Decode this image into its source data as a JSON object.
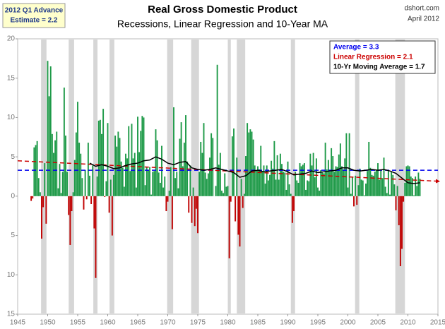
{
  "chart_data": {
    "type": "bar",
    "title": "Real Gross Domestic Product",
    "subtitle": "Recessions, Linear Regression and 10-Year MA",
    "source": "dshort.com",
    "date": "April 2012",
    "note": [
      "2012 Q1 Advance",
      "Estimate = 2.2"
    ],
    "x": [
      1947.25,
      1947.5,
      1947.75,
      1948,
      1948.25,
      1948.5,
      1948.75,
      1949,
      1949.25,
      1949.5,
      1949.75,
      1950,
      1950.25,
      1950.5,
      1950.75,
      1951,
      1951.25,
      1951.5,
      1951.75,
      1952,
      1952.25,
      1952.5,
      1952.75,
      1953,
      1953.25,
      1953.5,
      1953.75,
      1954,
      1954.25,
      1954.5,
      1954.75,
      1955,
      1955.25,
      1955.5,
      1955.75,
      1956,
      1956.25,
      1956.5,
      1956.75,
      1957,
      1957.25,
      1957.5,
      1957.75,
      1958,
      1958.25,
      1958.5,
      1958.75,
      1959,
      1959.25,
      1959.5,
      1959.75,
      1960,
      1960.25,
      1960.5,
      1960.75,
      1961,
      1961.25,
      1961.5,
      1961.75,
      1962,
      1962.25,
      1962.5,
      1962.75,
      1963,
      1963.25,
      1963.5,
      1963.75,
      1964,
      1964.25,
      1964.5,
      1964.75,
      1965,
      1965.25,
      1965.5,
      1965.75,
      1966,
      1966.25,
      1966.5,
      1966.75,
      1967,
      1967.25,
      1967.5,
      1967.75,
      1968,
      1968.25,
      1968.5,
      1968.75,
      1969,
      1969.25,
      1969.5,
      1969.75,
      1970,
      1970.25,
      1970.5,
      1970.75,
      1971,
      1971.25,
      1971.5,
      1971.75,
      1972,
      1972.25,
      1972.5,
      1972.75,
      1973,
      1973.25,
      1973.5,
      1973.75,
      1974,
      1974.25,
      1974.5,
      1974.75,
      1975,
      1975.25,
      1975.5,
      1975.75,
      1976,
      1976.25,
      1976.5,
      1976.75,
      1977,
      1977.25,
      1977.5,
      1977.75,
      1978,
      1978.25,
      1978.5,
      1978.75,
      1979,
      1979.25,
      1979.5,
      1979.75,
      1980,
      1980.25,
      1980.5,
      1980.75,
      1981,
      1981.25,
      1981.5,
      1981.75,
      1982,
      1982.25,
      1982.5,
      1982.75,
      1983,
      1983.25,
      1983.5,
      1983.75,
      1984,
      1984.25,
      1984.5,
      1984.75,
      1985,
      1985.25,
      1985.5,
      1985.75,
      1986,
      1986.25,
      1986.5,
      1986.75,
      1987,
      1987.25,
      1987.5,
      1987.75,
      1988,
      1988.25,
      1988.5,
      1988.75,
      1989,
      1989.25,
      1989.5,
      1989.75,
      1990,
      1990.25,
      1990.5,
      1990.75,
      1991,
      1991.25,
      1991.5,
      1991.75,
      1992,
      1992.25,
      1992.5,
      1992.75,
      1993,
      1993.25,
      1993.5,
      1993.75,
      1994,
      1994.25,
      1994.5,
      1994.75,
      1995,
      1995.25,
      1995.5,
      1995.75,
      1996,
      1996.25,
      1996.5,
      1996.75,
      1997,
      1997.25,
      1997.5,
      1997.75,
      1998,
      1998.25,
      1998.5,
      1998.75,
      1999,
      1999.25,
      1999.5,
      1999.75,
      2000,
      2000.25,
      2000.5,
      2000.75,
      2001,
      2001.25,
      2001.5,
      2001.75,
      2002,
      2002.25,
      2002.5,
      2002.75,
      2003,
      2003.25,
      2003.5,
      2003.75,
      2004,
      2004.25,
      2004.5,
      2004.75,
      2005,
      2005.25,
      2005.5,
      2005.75,
      2006,
      2006.25,
      2006.5,
      2006.75,
      2007,
      2007.25,
      2007.5,
      2007.75,
      2008,
      2008.25,
      2008.5,
      2008.75,
      2009,
      2009.25,
      2009.5,
      2009.75,
      2010,
      2010.25,
      2010.5,
      2010.75,
      2011,
      2011.25,
      2011.5,
      2011.75,
      2012
    ],
    "values": [
      -0.6,
      -0.3,
      6.2,
      6.5,
      7.0,
      2.3,
      0.5,
      -5.4,
      -1.4,
      4.2,
      -3.5,
      17.2,
      12.7,
      16.5,
      7.9,
      5.5,
      7.1,
      8.2,
      1.0,
      4.1,
      0.4,
      3.1,
      13.8,
      7.7,
      3.1,
      -2.4,
      -6.2,
      -1.9,
      0.5,
      4.6,
      8.1,
      12.0,
      6.8,
      5.4,
      2.3,
      -1.7,
      3.3,
      -0.4,
      6.8,
      2.6,
      -1.0,
      3.9,
      -4.1,
      -10.4,
      2.5,
      9.6,
      9.7,
      7.9,
      11.1,
      -0.1,
      1.9,
      9.3,
      -2.1,
      2.1,
      -5.0,
      2.7,
      7.7,
      6.3,
      8.2,
      7.4,
      4.4,
      3.6,
      1.2,
      5.4,
      4.8,
      8.9,
      3.2,
      9.2,
      4.8,
      5.5,
      1.1,
      10.1,
      5.6,
      8.3,
      10.2,
      10.0,
      1.4,
      3.7,
      3.3,
      3.7,
      0.2,
      3.1,
      3.2,
      8.5,
      7.1,
      3.0,
      1.7,
      6.4,
      1.1,
      2.5,
      -1.9,
      -0.7,
      0.7,
      3.7,
      -4.2,
      11.3,
      2.3,
      3.1,
      1.0,
      7.3,
      9.4,
      3.8,
      6.8,
      10.3,
      4.4,
      -2.1,
      3.9,
      -3.4,
      1.1,
      -3.8,
      -1.6,
      -4.7,
      3.1,
      6.9,
      5.5,
      9.3,
      3.0,
      2.2,
      2.9,
      4.9,
      8.0,
      7.4,
      0.0,
      1.3,
      16.7,
      4.0,
      5.5,
      0.7,
      0.4,
      2.9,
      1.2,
      1.3,
      -7.9,
      -0.7,
      7.6,
      8.6,
      -3.2,
      4.9,
      -4.9,
      -6.4,
      2.2,
      -1.5,
      0.3,
      5.1,
      9.3,
      8.1,
      8.5,
      8.2,
      7.2,
      3.9,
      3.3,
      3.8,
      3.4,
      6.4,
      3.1,
      3.9,
      1.6,
      3.9,
      2.0,
      2.7,
      4.5,
      3.5,
      7.0,
      2.1,
      5.2,
      2.1,
      5.4,
      4.1,
      3.1,
      3.0,
      0.8,
      4.4,
      1.5,
      0.3,
      -3.4,
      -1.9,
      3.1,
      2.0,
      1.7,
      4.2,
      3.8,
      4.0,
      4.2,
      0.8,
      2.0,
      1.9,
      5.4,
      3.9,
      5.5,
      2.4,
      4.8,
      1.1,
      0.7,
      3.3,
      3.0,
      2.9,
      6.8,
      3.4,
      4.6,
      3.1,
      6.1,
      5.1,
      3.1,
      3.8,
      3.7,
      5.3,
      6.7,
      3.8,
      3.4,
      4.8,
      8.0,
      1.1,
      8.0,
      0.3,
      2.4,
      -1.3,
      2.6,
      -1.1,
      1.4,
      3.5,
      2.1,
      2.0,
      0.1,
      1.6,
      3.2,
      6.9,
      3.6,
      2.7,
      2.6,
      3.1,
      3.3,
      4.2,
      2.1,
      3.4,
      2.3,
      4.9,
      1.2,
      0.4,
      3.2,
      0.2,
      3.1,
      2.7,
      1.5,
      -1.8,
      1.3,
      -3.7,
      -8.9,
      -6.7,
      -0.7,
      1.7,
      3.8,
      3.9,
      3.8,
      2.5,
      2.3,
      0.1,
      2.5,
      1.3,
      3.0,
      2.2
    ],
    "positive_color": "#1e9a48",
    "negative_color": "#c00000",
    "xlim": [
      1945,
      2015
    ],
    "xticks": [
      1945,
      1950,
      1955,
      1960,
      1965,
      1970,
      1975,
      1980,
      1985,
      1990,
      1995,
      2000,
      2005,
      2010,
      2015
    ],
    "ylim": [
      -15,
      20
    ],
    "yticks": [
      {
        "value": -15,
        "label": "15"
      },
      {
        "value": -10,
        "label": "10"
      },
      {
        "value": -5,
        "label": "5"
      },
      0,
      5,
      10,
      15,
      20
    ],
    "recessions": [
      [
        1948.9,
        1949.8
      ],
      [
        1953.5,
        1954.4
      ],
      [
        1957.6,
        1958.3
      ],
      [
        1960.3,
        1961.1
      ],
      [
        1969.9,
        1970.9
      ],
      [
        1973.9,
        1975.2
      ],
      [
        1980.0,
        1980.5
      ],
      [
        1981.5,
        1982.9
      ],
      [
        1990.5,
        1991.2
      ],
      [
        2001.2,
        2001.9
      ],
      [
        2007.9,
        2009.5
      ]
    ],
    "recession_color": "#d6d6d6",
    "average": {
      "name": "Average = 3.3",
      "value": 3.3,
      "color": "#0000ee"
    },
    "regression": {
      "name": "Linear Regression = 2.1",
      "x": [
        1945,
        2015
      ],
      "values": [
        4.5,
        1.9
      ],
      "color": "#cc0000"
    },
    "moving_average": {
      "name": "10-Yr Moving Average = 1.7",
      "x": [
        1957,
        1958,
        1959,
        1960,
        1961,
        1962,
        1963,
        1964,
        1965,
        1966,
        1967,
        1968,
        1969,
        1970,
        1971,
        1972,
        1973,
        1974,
        1975,
        1976,
        1977,
        1978,
        1979,
        1980,
        1981,
        1982,
        1983,
        1984,
        1985,
        1986,
        1987,
        1988,
        1989,
        1990,
        1991,
        1992,
        1993,
        1994,
        1995,
        1996,
        1997,
        1998,
        1999,
        2000,
        2001,
        2002,
        2003,
        2004,
        2005,
        2006,
        2007,
        2008,
        2009,
        2010,
        2011,
        2012
      ],
      "values": [
        4.2,
        3.8,
        4.0,
        3.8,
        3.5,
        3.6,
        3.9,
        4.1,
        4.2,
        4.5,
        4.6,
        5.0,
        4.7,
        4.2,
        4.0,
        4.3,
        4.4,
        3.6,
        3.4,
        3.3,
        3.4,
        3.6,
        3.4,
        3.2,
        3.0,
        2.4,
        2.6,
        3.2,
        3.3,
        3.1,
        3.2,
        3.3,
        3.4,
        3.1,
        2.7,
        2.8,
        2.9,
        3.2,
        3.0,
        3.1,
        3.2,
        3.3,
        3.6,
        3.6,
        3.3,
        3.2,
        3.3,
        3.4,
        3.3,
        3.4,
        3.2,
        2.9,
        2.3,
        1.7,
        1.6,
        1.7
      ],
      "color": "#000000"
    }
  }
}
